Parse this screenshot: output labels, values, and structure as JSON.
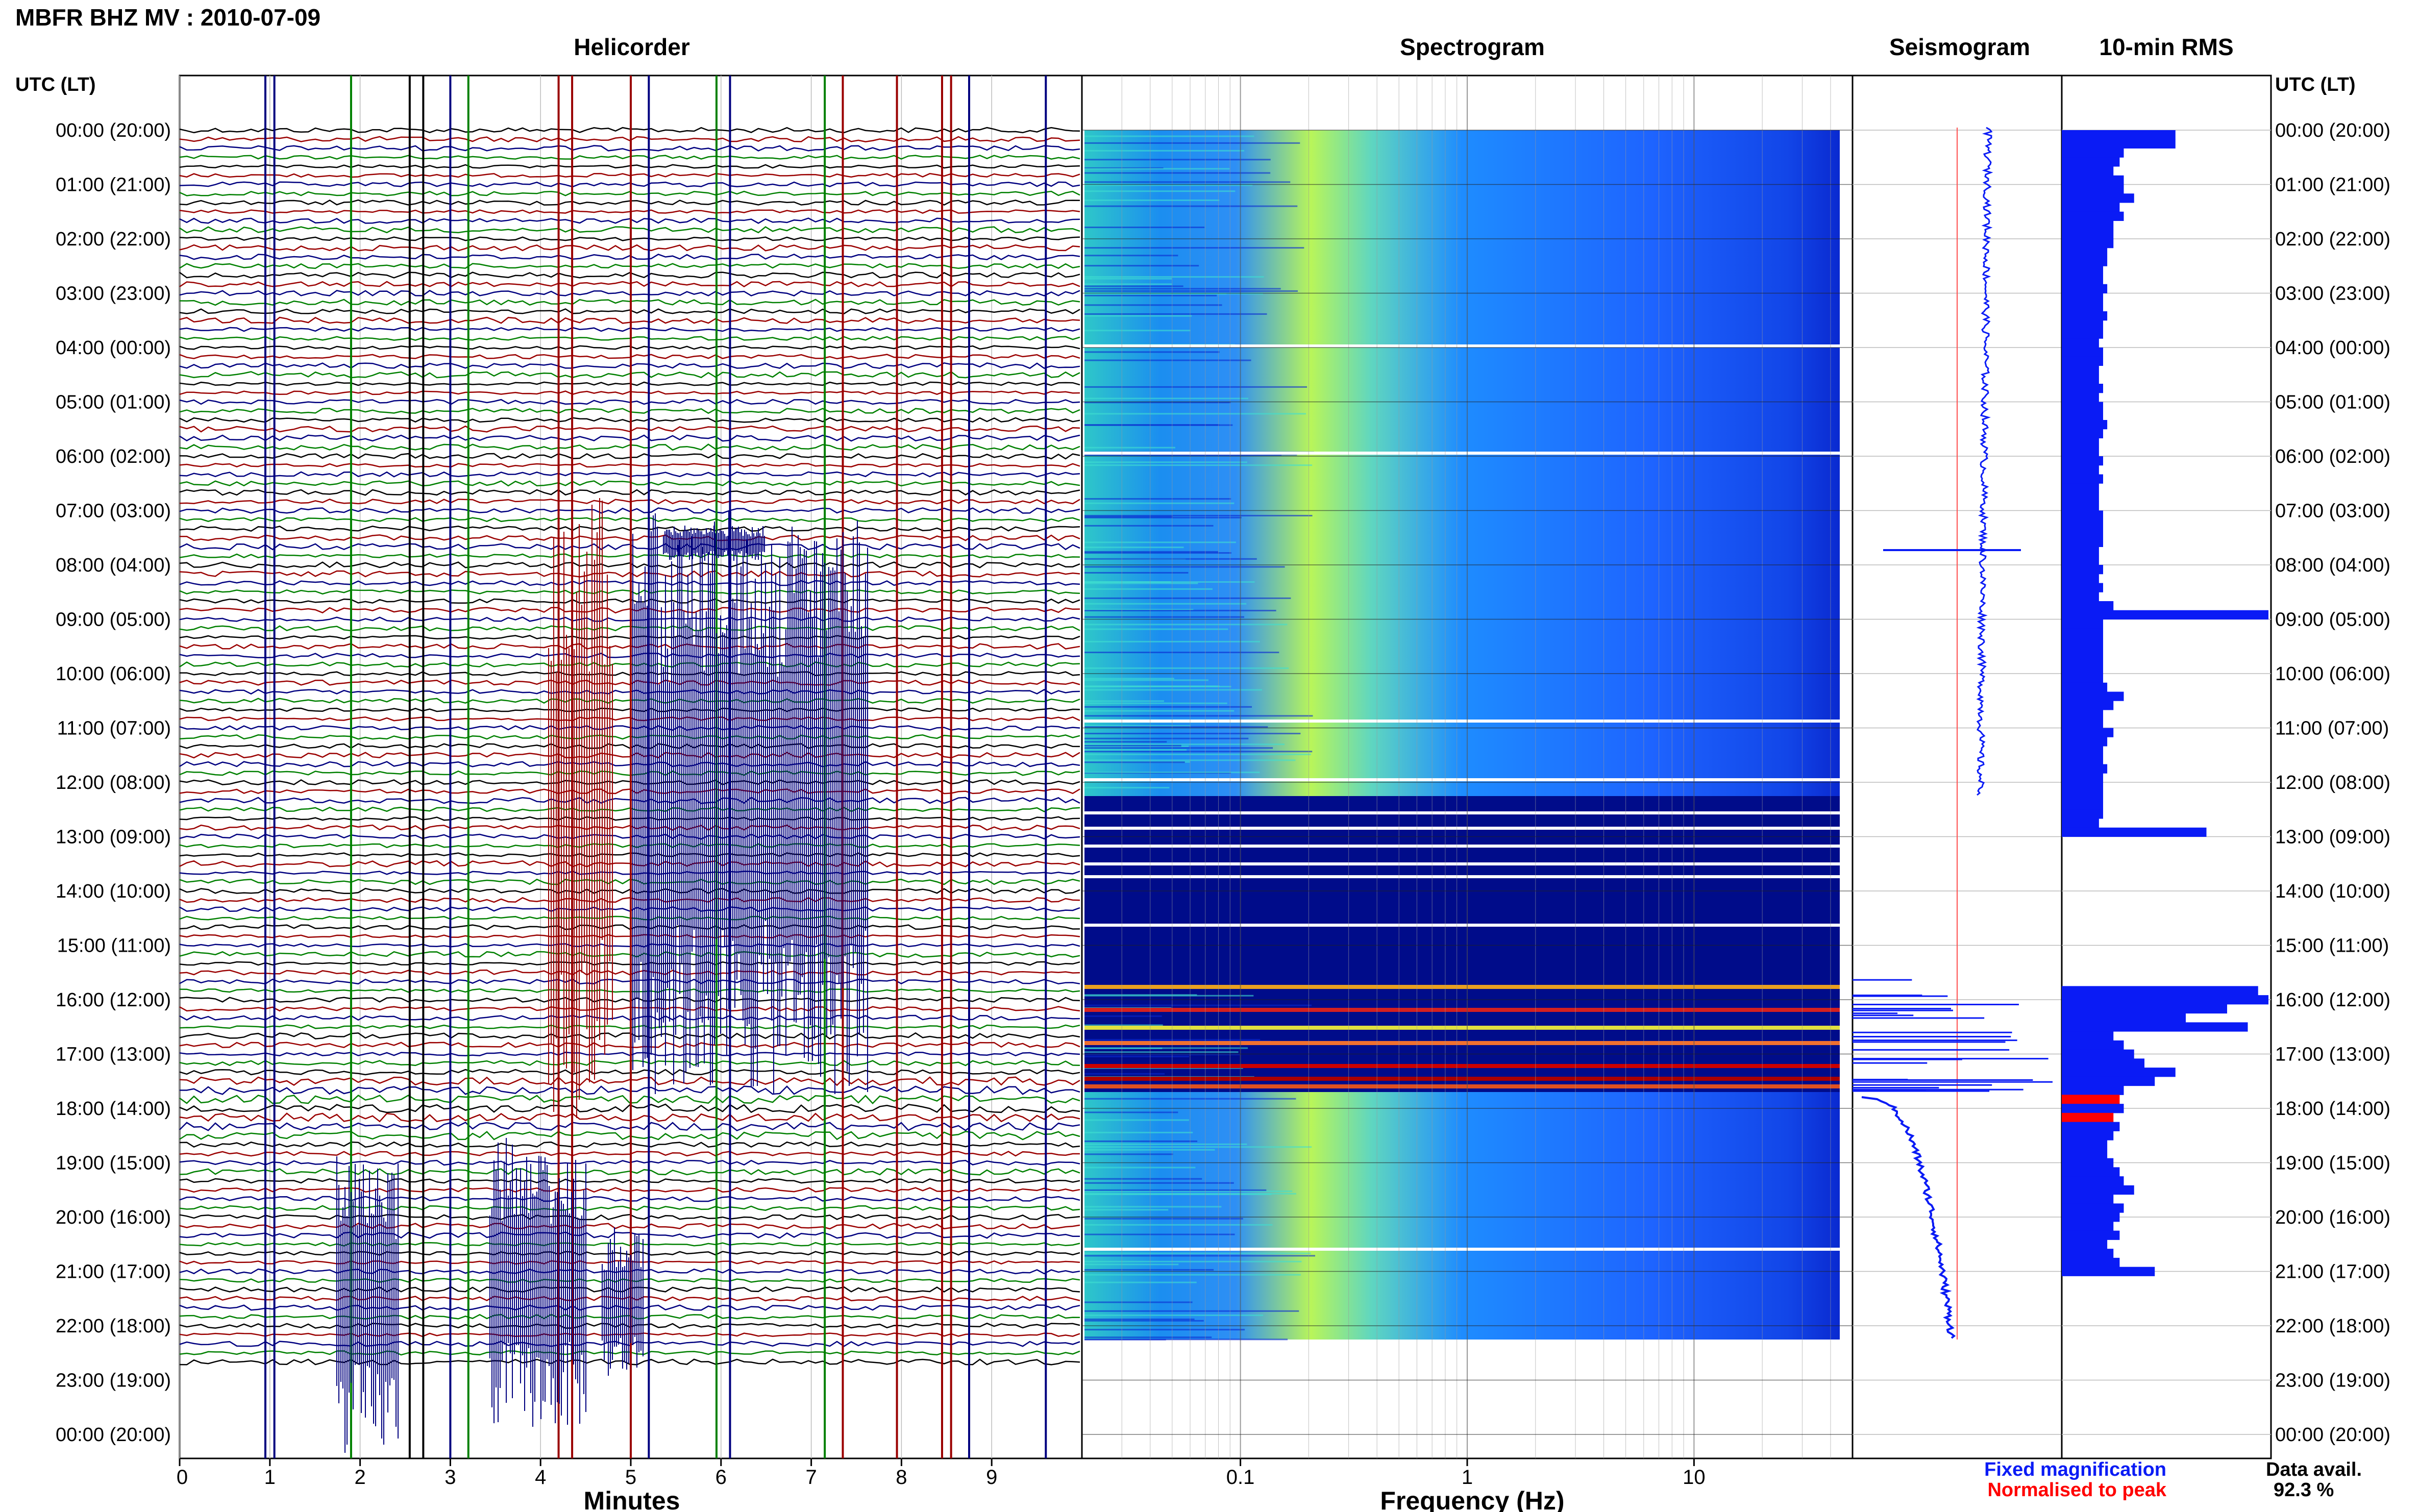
{
  "header": {
    "station_title": "MBFR BHZ MV : 2010-07-09",
    "utc_label_left": "UTC (LT)",
    "utc_label_right": "UTC (LT)"
  },
  "panels": {
    "helicorder": "Helicorder",
    "spectrogram": "Spectrogram",
    "seismogram": "Seismogram",
    "rms": "10-min RMS"
  },
  "time_labels": [
    "00:00 (20:00)",
    "01:00 (21:00)",
    "02:00 (22:00)",
    "03:00 (23:00)",
    "04:00 (00:00)",
    "05:00 (01:00)",
    "06:00 (02:00)",
    "07:00 (03:00)",
    "08:00 (04:00)",
    "09:00 (05:00)",
    "10:00 (06:00)",
    "11:00 (07:00)",
    "12:00 (08:00)",
    "13:00 (09:00)",
    "14:00 (10:00)",
    "15:00 (11:00)",
    "16:00 (12:00)",
    "17:00 (13:00)",
    "18:00 (14:00)",
    "19:00 (15:00)",
    "20:00 (16:00)",
    "21:00 (17:00)",
    "22:00 (18:00)",
    "23:00 (19:00)",
    "00:00 (20:00)"
  ],
  "axes": {
    "minutes_label": "Minutes",
    "minutes_ticks": [
      "0",
      "1",
      "2",
      "3",
      "4",
      "5",
      "6",
      "7",
      "8",
      "9"
    ],
    "frequency_label": "Frequency (Hz)",
    "frequency_ticks": [
      "0.1",
      "1",
      "10"
    ]
  },
  "legend": {
    "fixed": "Fixed magnification",
    "normalised": "Normalised to peak",
    "fixed_color": "#0a1bf5",
    "normalised_color": "#ff0000"
  },
  "availability": {
    "label": "Data avail.",
    "value": "92.3 %"
  },
  "colors": {
    "trace_black": "#000000",
    "trace_red": "#9a0000",
    "trace_blue": "#00007f",
    "trace_green": "#008000",
    "spectro_low": "#000c8a",
    "spectro_mid": "#1e64ff",
    "spectro_high": "#b8f55a",
    "rms_bar": "#0a1bf5",
    "rms_peak": "#ff0000"
  },
  "chart_data": {
    "type": "bar",
    "title": "10-min RMS",
    "rms_gap_hours": [
      12.2,
      15.5
    ],
    "rms_values": [
      0.55,
      0.55,
      0.3,
      0.28,
      0.25,
      0.3,
      0.3,
      0.35,
      0.28,
      0.3,
      0.25,
      0.25,
      0.25,
      0.22,
      0.22,
      0.2,
      0.2,
      0.22,
      0.2,
      0.2,
      0.22,
      0.2,
      0.2,
      0.18,
      0.2,
      0.2,
      0.18,
      0.18,
      0.2,
      0.18,
      0.2,
      0.2,
      0.22,
      0.2,
      0.18,
      0.18,
      0.2,
      0.18,
      0.2,
      0.18,
      0.18,
      0.18,
      0.2,
      0.2,
      0.2,
      0.2,
      0.18,
      0.18,
      0.2,
      0.18,
      0.2,
      0.18,
      0.25,
      1.0,
      0.2,
      0.2,
      0.2,
      0.2,
      0.2,
      0.2,
      0.2,
      0.22,
      0.3,
      0.25,
      0.2,
      0.2,
      0.25,
      0.22,
      0.2,
      0.2,
      0.22,
      0.2,
      0.2,
      0.2,
      0.2,
      0.2,
      0.18,
      0.7
    ],
    "rms_values_after_gap": [
      0.95,
      1.0,
      0.8,
      0.6,
      0.9,
      0.25,
      0.3,
      0.35,
      0.4,
      0.55,
      0.45,
      0.3,
      0.28,
      0.3,
      0.25,
      0.28,
      0.25,
      0.22,
      0.22,
      0.25,
      0.28,
      0.3,
      0.35,
      0.25,
      0.3,
      0.28,
      0.25,
      0.28,
      0.22,
      0.25,
      0.28,
      0.45
    ],
    "rms_peak_indices": [
      12,
      14
    ]
  }
}
